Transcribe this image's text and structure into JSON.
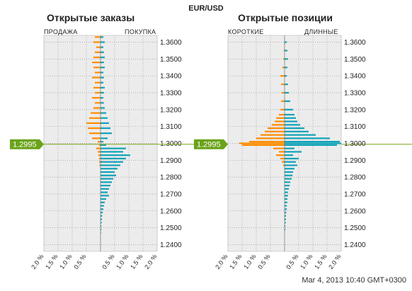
{
  "symbol": "EUR/USD",
  "timestamp": "Mar 4, 2013 10:40 GMT+0300",
  "current_price": "1.2995",
  "colors": {
    "sell": "#ff8c00",
    "buy": "#11a3b8",
    "price_line": "#7aa51a",
    "price_tag": "#6aa31a",
    "panel_bg": "#ececec"
  },
  "price_ticks": [
    "1.3600",
    "1.3500",
    "1.3400",
    "1.3300",
    "1.3200",
    "1.3100",
    "1.3000",
    "1.2900",
    "1.2800",
    "1.2700",
    "1.2600",
    "1.2500",
    "1.2400"
  ],
  "x_ticks": [
    "2.0 %",
    "1.5 %",
    "1.0 %",
    "0.5 %",
    "0.5 %",
    "1.0 %",
    "1.5 %",
    "2.0 %"
  ],
  "panels": {
    "orders": {
      "title": "Открытые заказы",
      "left_label": "ПРОДАЖА",
      "right_label": "ПОКУПКА"
    },
    "positions": {
      "title": "Открытые позиции",
      "left_label": "КОРОТКИЕ",
      "right_label": "ДЛИННЫЕ"
    }
  },
  "chart_data": [
    {
      "type": "bar",
      "title": "Открытые заказы",
      "orientation": "horizontal",
      "ylabel": "",
      "ylim": [
        1.236,
        1.364
      ],
      "xlim": [
        -2.0,
        2.0
      ],
      "current_price": 1.2995,
      "series": [
        {
          "name": "ПРОДАЖА",
          "side": "left",
          "bins": [
            [
              1.363,
              0.2
            ],
            [
              1.36,
              0.25
            ],
            [
              1.357,
              0.15
            ],
            [
              1.354,
              0.2
            ],
            [
              1.351,
              0.25
            ],
            [
              1.348,
              0.3
            ],
            [
              1.345,
              0.25
            ],
            [
              1.342,
              0.2
            ],
            [
              1.339,
              0.3
            ],
            [
              1.336,
              0.2
            ],
            [
              1.333,
              0.25
            ],
            [
              1.33,
              0.2
            ],
            [
              1.327,
              0.3
            ],
            [
              1.324,
              0.2
            ],
            [
              1.321,
              0.25
            ],
            [
              1.318,
              0.35
            ],
            [
              1.315,
              0.4
            ],
            [
              1.312,
              0.5
            ],
            [
              1.309,
              0.45
            ],
            [
              1.306,
              0.4
            ],
            [
              1.303,
              0.3
            ],
            [
              1.301,
              0.1
            ],
            [
              1.299,
              0.05
            ],
            [
              1.297,
              0.15
            ],
            [
              1.295,
              0.1
            ],
            [
              1.293,
              0.08
            ],
            [
              1.291,
              0.05
            ],
            [
              1.289,
              0.05
            ],
            [
              1.287,
              0.04
            ]
          ]
        },
        {
          "name": "ПОКУПКА",
          "side": "right",
          "bins": [
            [
              1.363,
              0.1
            ],
            [
              1.36,
              0.15
            ],
            [
              1.357,
              0.1
            ],
            [
              1.354,
              0.12
            ],
            [
              1.351,
              0.15
            ],
            [
              1.348,
              0.12
            ],
            [
              1.345,
              0.15
            ],
            [
              1.342,
              0.1
            ],
            [
              1.339,
              0.12
            ],
            [
              1.336,
              0.1
            ],
            [
              1.333,
              0.15
            ],
            [
              1.33,
              0.12
            ],
            [
              1.327,
              0.1
            ],
            [
              1.324,
              0.12
            ],
            [
              1.321,
              0.15
            ],
            [
              1.318,
              0.2
            ],
            [
              1.315,
              0.25
            ],
            [
              1.312,
              0.3
            ],
            [
              1.309,
              0.35
            ],
            [
              1.306,
              0.4
            ],
            [
              1.303,
              0.25
            ],
            [
              1.301,
              0.1
            ],
            [
              1.299,
              0.2
            ],
            [
              1.297,
              0.9
            ],
            [
              1.295,
              0.8
            ],
            [
              1.293,
              1.05
            ],
            [
              1.291,
              0.9
            ],
            [
              1.289,
              0.8
            ],
            [
              1.287,
              0.7
            ],
            [
              1.285,
              0.6
            ],
            [
              1.283,
              0.5
            ],
            [
              1.281,
              0.55
            ],
            [
              1.279,
              0.45
            ],
            [
              1.277,
              0.4
            ],
            [
              1.275,
              0.35
            ],
            [
              1.273,
              0.3
            ],
            [
              1.271,
              0.25
            ],
            [
              1.269,
              0.3
            ],
            [
              1.267,
              0.2
            ],
            [
              1.265,
              0.15
            ],
            [
              1.263,
              0.12
            ],
            [
              1.261,
              0.1
            ],
            [
              1.259,
              0.08
            ],
            [
              1.257,
              0.06
            ],
            [
              1.255,
              0.05
            ],
            [
              1.253,
              0.04
            ],
            [
              1.251,
              0.03
            ],
            [
              1.249,
              0.03
            ],
            [
              1.247,
              0.02
            ]
          ]
        }
      ]
    },
    {
      "type": "bar",
      "title": "Открытые позиции",
      "orientation": "horizontal",
      "ylim": [
        1.236,
        1.364
      ],
      "xlim": [
        -2.0,
        2.0
      ],
      "current_price": 1.2995,
      "series": [
        {
          "name": "КОРОТКИЕ",
          "side": "left",
          "bins": [
            [
              1.359,
              0.02
            ],
            [
              1.355,
              0.03
            ],
            [
              1.35,
              0.05
            ],
            [
              1.345,
              0.08
            ],
            [
              1.34,
              0.15
            ],
            [
              1.335,
              0.12
            ],
            [
              1.33,
              0.1
            ],
            [
              1.325,
              0.12
            ],
            [
              1.32,
              0.15
            ],
            [
              1.317,
              0.2
            ],
            [
              1.315,
              0.3
            ],
            [
              1.313,
              0.35
            ],
            [
              1.311,
              0.45
            ],
            [
              1.309,
              0.6
            ],
            [
              1.307,
              0.7
            ],
            [
              1.305,
              0.85
            ],
            [
              1.303,
              1.0
            ],
            [
              1.301,
              1.25
            ],
            [
              1.3,
              1.6
            ],
            [
              1.299,
              1.5
            ],
            [
              1.297,
              0.4
            ],
            [
              1.295,
              0.2
            ],
            [
              1.293,
              0.3
            ],
            [
              1.291,
              0.15
            ],
            [
              1.289,
              0.1
            ],
            [
              1.287,
              0.05
            ]
          ]
        },
        {
          "name": "ДЛИННЫЕ",
          "side": "right",
          "bins": [
            [
              1.36,
              0.08
            ],
            [
              1.355,
              0.1
            ],
            [
              1.35,
              0.12
            ],
            [
              1.345,
              0.1
            ],
            [
              1.34,
              0.08
            ],
            [
              1.335,
              0.12
            ],
            [
              1.33,
              0.15
            ],
            [
              1.325,
              0.2
            ],
            [
              1.32,
              0.3
            ],
            [
              1.317,
              0.35
            ],
            [
              1.315,
              0.4
            ],
            [
              1.313,
              0.45
            ],
            [
              1.311,
              0.55
            ],
            [
              1.309,
              0.7
            ],
            [
              1.307,
              0.85
            ],
            [
              1.305,
              1.1
            ],
            [
              1.303,
              1.6
            ],
            [
              1.301,
              1.95
            ],
            [
              1.3,
              2.0
            ],
            [
              1.299,
              1.85
            ],
            [
              1.297,
              0.35
            ],
            [
              1.295,
              0.6
            ],
            [
              1.293,
              0.3
            ],
            [
              1.291,
              0.5
            ],
            [
              1.289,
              0.4
            ],
            [
              1.287,
              0.45
            ],
            [
              1.285,
              0.35
            ],
            [
              1.283,
              0.3
            ],
            [
              1.281,
              0.28
            ],
            [
              1.279,
              0.25
            ],
            [
              1.277,
              0.2
            ],
            [
              1.275,
              0.18
            ],
            [
              1.273,
              0.15
            ],
            [
              1.271,
              0.12
            ],
            [
              1.269,
              0.12
            ],
            [
              1.267,
              0.1
            ],
            [
              1.265,
              0.1
            ],
            [
              1.263,
              0.08
            ],
            [
              1.261,
              0.08
            ],
            [
              1.259,
              0.06
            ],
            [
              1.257,
              0.05
            ],
            [
              1.255,
              0.05
            ],
            [
              1.253,
              0.04
            ],
            [
              1.251,
              0.03
            ],
            [
              1.249,
              0.03
            ]
          ]
        }
      ]
    }
  ]
}
